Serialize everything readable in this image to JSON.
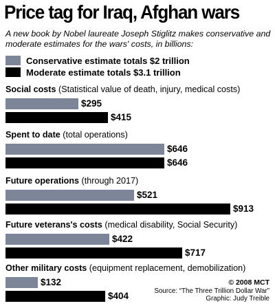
{
  "chart_data": {
    "type": "bar",
    "orientation": "horizontal",
    "title": "Price tag for Iraq, Afghan wars",
    "subtitle": "A new book by Nobel laureate Joseph Stiglitz makes conservative and moderate estimates for the wars' costs, in billions:",
    "legend": [
      {
        "label": "Conservative estimate totals $2 trillion",
        "color": "#7d8698"
      },
      {
        "label": "Moderate estimate totals $3.1 trillion",
        "color": "#000000"
      }
    ],
    "categories": [
      {
        "name": "Social costs",
        "note": "(Statistical value of death, injury, medical costs)"
      },
      {
        "name": "Spent to date",
        "note": "(total operations)"
      },
      {
        "name": "Future operations",
        "note": "(through 2017)"
      },
      {
        "name": "Future veterans's costs",
        "note": "(medical disability, Social Security)"
      },
      {
        "name": "Other military costs",
        "note": "(equipment replacement, demobilization)"
      }
    ],
    "series": [
      {
        "name": "Conservative estimate totals $2 trillion",
        "color": "#7d8698",
        "values": [
          295,
          646,
          521,
          422,
          132
        ],
        "labels": [
          "$295",
          "$646",
          "$521",
          "$422",
          "$132"
        ]
      },
      {
        "name": "Moderate estimate totals $3.1 trillion",
        "color": "#000000",
        "values": [
          415,
          646,
          913,
          717,
          404
        ],
        "labels": [
          "$415",
          "$646",
          "$913",
          "$717",
          "$404"
        ]
      }
    ],
    "xlim": [
      0,
      913
    ],
    "grid": false
  },
  "credit": {
    "copyright": "© 2008 MCT",
    "source": "Source: “The Three Trillion Dollar War”",
    "graphic": "Graphic: Judy Treible"
  }
}
